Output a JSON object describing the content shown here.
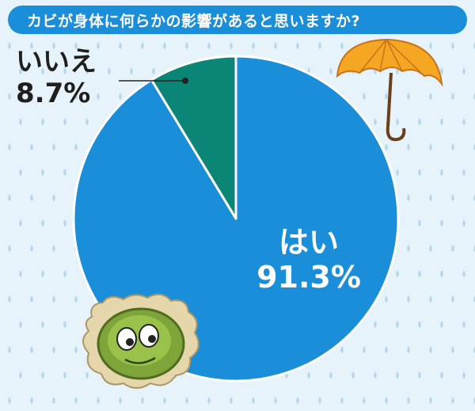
{
  "title": "カビが身体に何らかの影響があると思いますか?",
  "colors": {
    "title_bar": "#1b8ed9",
    "background": "#e7f3fa",
    "raindrop": "#b5d6ec",
    "slice_yes": "#1b8ed9",
    "slice_no": "#0b8576",
    "outline": "#ffffff",
    "leader_line": "#222222"
  },
  "icons": [
    "raindrops-background",
    "umbrella-icon",
    "mold-character-icon"
  ],
  "chart_data": {
    "type": "pie",
    "title": "カビが身体に何らかの影響があると思いますか?",
    "start": "12 o'clock",
    "direction": "clockwise",
    "slices": [
      {
        "label": "はい",
        "value": 91.3,
        "value_label": "91.3%",
        "color": "#1b8ed9"
      },
      {
        "label": "いいえ",
        "value": 8.7,
        "value_label": "8.7%",
        "color": "#0b8576"
      }
    ]
  }
}
